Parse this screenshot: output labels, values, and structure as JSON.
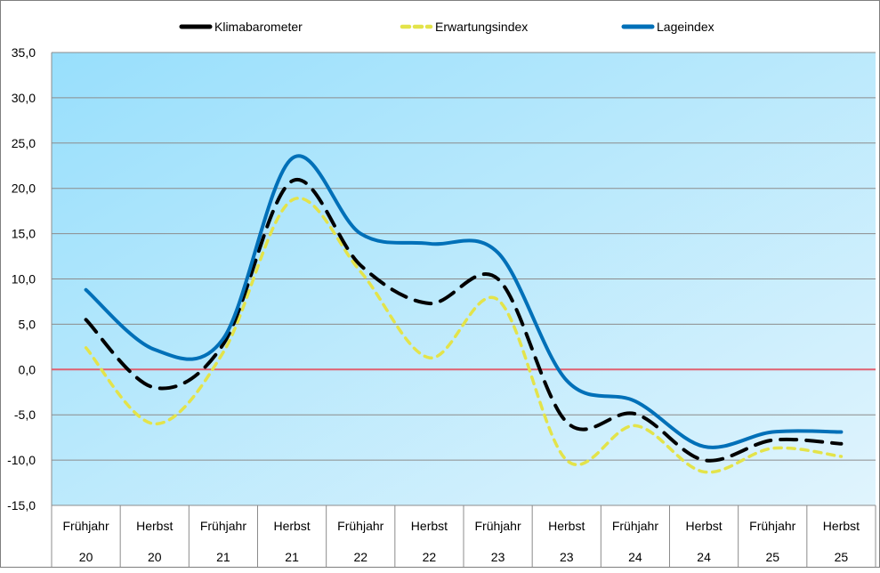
{
  "chart_data": {
    "type": "line",
    "title": "",
    "xlabel": "",
    "ylabel": "",
    "ylim": [
      -15,
      35
    ],
    "ytick_step": 5,
    "ytick_labels": [
      "35,0",
      "30,0",
      "25,0",
      "20,0",
      "15,0",
      "10,0",
      "5,0",
      "0,0",
      "-5,0",
      "-10,0",
      "-15,0"
    ],
    "grid": true,
    "legend_position": "top",
    "categories": [
      {
        "season": "Frühjahr",
        "year": "20"
      },
      {
        "season": "Herbst",
        "year": "20"
      },
      {
        "season": "Frühjahr",
        "year": "21"
      },
      {
        "season": "Herbst",
        "year": "21"
      },
      {
        "season": "Frühjahr",
        "year": "22"
      },
      {
        "season": "Herbst",
        "year": "22"
      },
      {
        "season": "Frühjahr",
        "year": "23"
      },
      {
        "season": "Herbst",
        "year": "23"
      },
      {
        "season": "Frühjahr",
        "year": "24"
      },
      {
        "season": "Herbst",
        "year": "24"
      },
      {
        "season": "Frühjahr",
        "year": "25"
      },
      {
        "season": "Herbst",
        "year": "25"
      }
    ],
    "series": [
      {
        "name": "Klimabarometer",
        "color": "#000000",
        "style": "long-dash",
        "values": [
          5.5,
          -2.0,
          2.8,
          20.8,
          11.5,
          7.3,
          10.0,
          -5.8,
          -4.9,
          -10.0,
          -7.8,
          -8.2
        ]
      },
      {
        "name": "Erwartungsindex",
        "color": "#e3e34a",
        "style": "short-dash",
        "values": [
          2.4,
          -6.0,
          1.9,
          18.7,
          10.8,
          1.3,
          7.7,
          -10.0,
          -6.2,
          -11.3,
          -8.7,
          -9.6
        ]
      },
      {
        "name": "Lageindex",
        "color": "#0070b8",
        "style": "solid",
        "values": [
          8.8,
          2.2,
          3.4,
          23.3,
          15.0,
          13.9,
          12.9,
          -1.2,
          -3.5,
          -8.5,
          -6.9,
          -6.9
        ]
      }
    ],
    "reference_line": {
      "value": 0,
      "color": "#e06070"
    },
    "background_gradient": [
      "#98dffc",
      "#e0f4fd"
    ]
  }
}
